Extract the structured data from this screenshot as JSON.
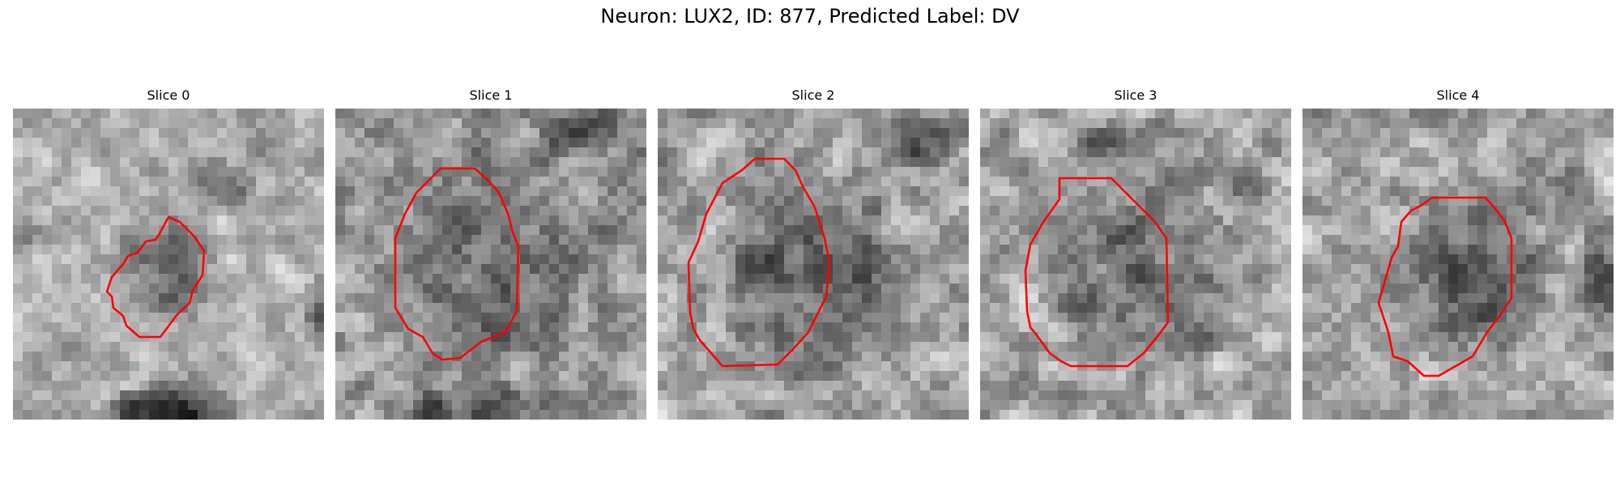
{
  "figure": {
    "title": "Neuron: LUX2, ID: 877, Predicted Label: DV"
  },
  "colors": {
    "contour": "#ff0000",
    "background": "#ffffff"
  },
  "panels": [
    {
      "title": "Slice 0"
    },
    {
      "title": "Slice 1"
    },
    {
      "title": "Slice 2"
    },
    {
      "title": "Slice 3"
    },
    {
      "title": "Slice 4"
    }
  ]
}
